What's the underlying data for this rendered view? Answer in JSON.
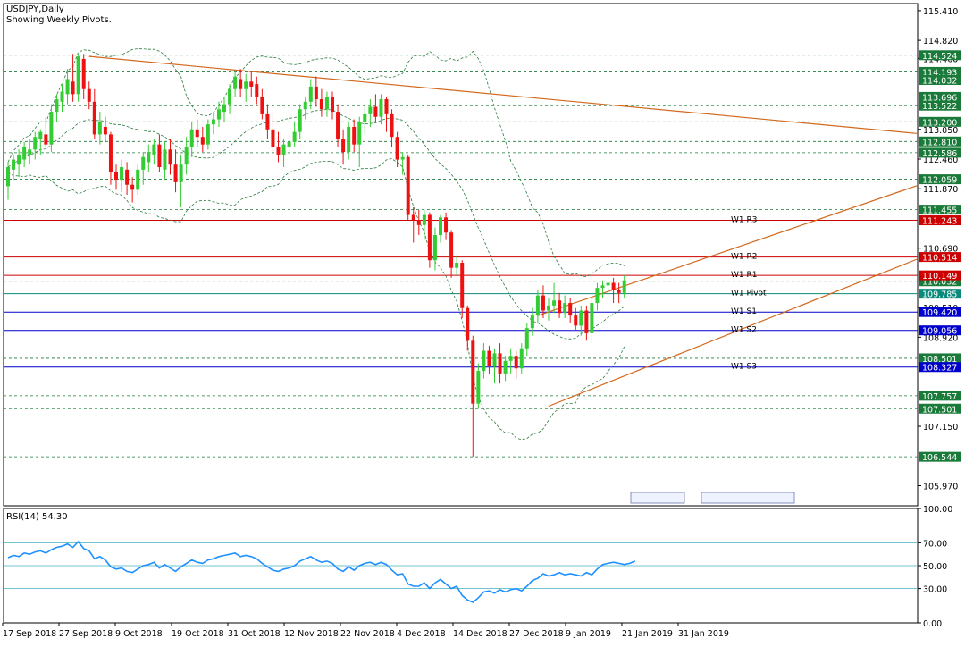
{
  "header": {
    "symbol": "USDJPY,Daily",
    "subtitle": "Showing Weekly Pivots."
  },
  "rsi_header": "RSI(14) 54.30",
  "chart_data": {
    "type": "candlestick",
    "price_axis": {
      "range": [
        105.57,
        115.55
      ],
      "ticks": [
        "115.410",
        "114.820",
        "114.460",
        "113.050",
        "112.460",
        "111.870",
        "110.690",
        "109.510",
        "108.920",
        "107.150",
        "105.970"
      ]
    },
    "rsi_axis": {
      "range": [
        0,
        100
      ],
      "ticks": [
        "100.00",
        "70.00",
        "50.00",
        "30.00",
        "0.00"
      ],
      "levels": [
        70,
        50,
        30
      ]
    },
    "x_dates": [
      "17 Sep 2018",
      "27 Sep 2018",
      "9 Oct 2018",
      "19 Oct 2018",
      "31 Oct 2018",
      "12 Nov 2018",
      "22 Nov 2018",
      "4 Dec 2018",
      "14 Dec 2018",
      "27 Dec 2018",
      "9 Jan 2019",
      "21 Jan 2019",
      "31 Jan 2019"
    ],
    "price_levels": [
      {
        "price": 114.524,
        "label": "114.524",
        "style": "dotted",
        "tag": "green"
      },
      {
        "price": 114.193,
        "label": "114.193",
        "style": "dotted",
        "tag": "green"
      },
      {
        "price": 114.032,
        "label": "114.032",
        "style": "dotted",
        "tag": "green"
      },
      {
        "price": 113.696,
        "label": "113.696",
        "style": "dotted",
        "tag": "green"
      },
      {
        "price": 113.522,
        "label": "113.522",
        "style": "dotted",
        "tag": "green"
      },
      {
        "price": 113.2,
        "label": "113.200",
        "style": "dotted",
        "tag": "green"
      },
      {
        "price": 112.81,
        "label": "112.810",
        "style": "dotted",
        "tag": "green"
      },
      {
        "price": 112.586,
        "label": "112.586",
        "style": "dotted",
        "tag": "green"
      },
      {
        "price": 112.059,
        "label": "112.059",
        "style": "dotted",
        "tag": "green"
      },
      {
        "price": 111.455,
        "label": "111.455",
        "style": "dotted",
        "tag": "green"
      },
      {
        "price": 110.032,
        "label": "110.032",
        "style": "dotted",
        "tag": "green"
      },
      {
        "price": 108.501,
        "label": "108.501",
        "style": "dotted",
        "tag": "green"
      },
      {
        "price": 107.757,
        "label": "107.757",
        "style": "dotted",
        "tag": "green"
      },
      {
        "price": 107.501,
        "label": "107.501",
        "style": "dotted",
        "tag": "green"
      },
      {
        "price": 106.544,
        "label": "106.544",
        "style": "dotted",
        "tag": "green"
      },
      {
        "price": 109.785,
        "label": "109.785",
        "style": "solid",
        "tag": "teal",
        "name": "W1 Pivot"
      },
      {
        "price": 111.243,
        "label": "111.243",
        "style": "solid",
        "tag": "red",
        "name": "W1 R3"
      },
      {
        "price": 110.514,
        "label": "110.514",
        "style": "solid",
        "tag": "red",
        "name": "W1 R2"
      },
      {
        "price": 110.149,
        "label": "110.149",
        "style": "solid",
        "tag": "red",
        "name": "W1 R1"
      },
      {
        "price": 109.42,
        "label": "109.420",
        "style": "solid",
        "tag": "blue",
        "name": "W1 S1"
      },
      {
        "price": 109.056,
        "label": "109.056",
        "style": "solid",
        "tag": "blue",
        "name": "W1 S2"
      },
      {
        "price": 108.327,
        "label": "108.327",
        "style": "solid",
        "tag": "blue",
        "name": "W1 S3"
      }
    ],
    "candles": [
      {
        "o": 111.92,
        "h": 112.4,
        "l": 111.65,
        "c": 112.3
      },
      {
        "o": 112.25,
        "h": 112.55,
        "l": 112.05,
        "c": 112.45
      },
      {
        "o": 112.35,
        "h": 112.65,
        "l": 112.1,
        "c": 112.55
      },
      {
        "o": 112.45,
        "h": 112.8,
        "l": 112.3,
        "c": 112.7
      },
      {
        "o": 112.55,
        "h": 112.85,
        "l": 112.35,
        "c": 112.65
      },
      {
        "o": 112.65,
        "h": 113.0,
        "l": 112.45,
        "c": 112.9
      },
      {
        "o": 112.85,
        "h": 113.05,
        "l": 112.55,
        "c": 113.0
      },
      {
        "o": 112.95,
        "h": 113.3,
        "l": 112.7,
        "c": 112.75
      },
      {
        "o": 112.75,
        "h": 113.55,
        "l": 112.6,
        "c": 113.4
      },
      {
        "o": 113.4,
        "h": 113.75,
        "l": 113.2,
        "c": 113.65
      },
      {
        "o": 113.6,
        "h": 113.95,
        "l": 113.4,
        "c": 113.8
      },
      {
        "o": 113.75,
        "h": 114.25,
        "l": 113.55,
        "c": 114.05
      },
      {
        "o": 114.0,
        "h": 114.55,
        "l": 113.6,
        "c": 113.75
      },
      {
        "o": 113.75,
        "h": 114.55,
        "l": 113.6,
        "c": 114.5
      },
      {
        "o": 114.45,
        "h": 114.55,
        "l": 113.65,
        "c": 113.85
      },
      {
        "o": 113.85,
        "h": 114.0,
        "l": 113.45,
        "c": 113.6
      },
      {
        "o": 113.6,
        "h": 113.85,
        "l": 112.85,
        "c": 112.95
      },
      {
        "o": 112.95,
        "h": 113.4,
        "l": 112.75,
        "c": 113.2
      },
      {
        "o": 113.1,
        "h": 113.3,
        "l": 112.8,
        "c": 112.95
      },
      {
        "o": 112.95,
        "h": 113.0,
        "l": 111.95,
        "c": 112.2
      },
      {
        "o": 112.2,
        "h": 112.35,
        "l": 111.85,
        "c": 112.05
      },
      {
        "o": 112.05,
        "h": 112.45,
        "l": 111.8,
        "c": 112.3
      },
      {
        "o": 112.25,
        "h": 112.4,
        "l": 111.75,
        "c": 111.95
      },
      {
        "o": 111.95,
        "h": 112.1,
        "l": 111.6,
        "c": 111.85
      },
      {
        "o": 111.85,
        "h": 112.35,
        "l": 111.75,
        "c": 112.25
      },
      {
        "o": 112.25,
        "h": 112.6,
        "l": 111.95,
        "c": 112.5
      },
      {
        "o": 112.4,
        "h": 112.75,
        "l": 112.2,
        "c": 112.6
      },
      {
        "o": 112.55,
        "h": 112.85,
        "l": 112.35,
        "c": 112.75
      },
      {
        "o": 112.75,
        "h": 112.95,
        "l": 112.2,
        "c": 112.3
      },
      {
        "o": 112.25,
        "h": 112.8,
        "l": 112.05,
        "c": 112.65
      },
      {
        "o": 112.65,
        "h": 112.85,
        "l": 112.15,
        "c": 112.35
      },
      {
        "o": 112.35,
        "h": 112.65,
        "l": 111.8,
        "c": 112.0
      },
      {
        "o": 112.0,
        "h": 112.55,
        "l": 111.5,
        "c": 112.35
      },
      {
        "o": 112.35,
        "h": 112.9,
        "l": 112.15,
        "c": 112.7
      },
      {
        "o": 112.7,
        "h": 113.2,
        "l": 112.5,
        "c": 113.05
      },
      {
        "o": 113.05,
        "h": 113.25,
        "l": 112.7,
        "c": 112.9
      },
      {
        "o": 112.9,
        "h": 113.1,
        "l": 112.6,
        "c": 112.75
      },
      {
        "o": 112.75,
        "h": 113.25,
        "l": 112.65,
        "c": 113.15
      },
      {
        "o": 113.15,
        "h": 113.4,
        "l": 112.95,
        "c": 113.25
      },
      {
        "o": 113.25,
        "h": 113.6,
        "l": 113.1,
        "c": 113.45
      },
      {
        "o": 113.4,
        "h": 113.7,
        "l": 113.2,
        "c": 113.55
      },
      {
        "o": 113.55,
        "h": 113.95,
        "l": 113.35,
        "c": 113.85
      },
      {
        "o": 113.85,
        "h": 114.2,
        "l": 113.7,
        "c": 114.1
      },
      {
        "o": 114.05,
        "h": 114.25,
        "l": 113.7,
        "c": 113.85
      },
      {
        "o": 113.85,
        "h": 114.15,
        "l": 113.6,
        "c": 114.0
      },
      {
        "o": 114.0,
        "h": 114.2,
        "l": 113.7,
        "c": 113.9
      },
      {
        "o": 113.95,
        "h": 114.1,
        "l": 113.55,
        "c": 113.7
      },
      {
        "o": 113.7,
        "h": 113.85,
        "l": 113.25,
        "c": 113.35
      },
      {
        "o": 113.35,
        "h": 113.55,
        "l": 112.85,
        "c": 113.05
      },
      {
        "o": 113.05,
        "h": 113.4,
        "l": 112.5,
        "c": 112.7
      },
      {
        "o": 112.7,
        "h": 113.0,
        "l": 112.4,
        "c": 112.55
      },
      {
        "o": 112.55,
        "h": 112.85,
        "l": 112.3,
        "c": 112.75
      },
      {
        "o": 112.7,
        "h": 112.95,
        "l": 112.55,
        "c": 112.8
      },
      {
        "o": 112.8,
        "h": 113.2,
        "l": 112.7,
        "c": 113.0
      },
      {
        "o": 113.0,
        "h": 113.55,
        "l": 112.85,
        "c": 113.45
      },
      {
        "o": 113.45,
        "h": 113.7,
        "l": 113.25,
        "c": 113.6
      },
      {
        "o": 113.6,
        "h": 114.05,
        "l": 113.45,
        "c": 113.9
      },
      {
        "o": 113.9,
        "h": 114.1,
        "l": 113.5,
        "c": 113.65
      },
      {
        "o": 113.65,
        "h": 113.85,
        "l": 113.3,
        "c": 113.45
      },
      {
        "o": 113.45,
        "h": 113.8,
        "l": 113.3,
        "c": 113.7
      },
      {
        "o": 113.7,
        "h": 113.8,
        "l": 113.25,
        "c": 113.4
      },
      {
        "o": 113.4,
        "h": 113.55,
        "l": 112.7,
        "c": 112.85
      },
      {
        "o": 112.85,
        "h": 113.05,
        "l": 112.35,
        "c": 112.6
      },
      {
        "o": 112.6,
        "h": 113.2,
        "l": 112.45,
        "c": 113.1
      },
      {
        "o": 113.1,
        "h": 113.25,
        "l": 112.6,
        "c": 112.75
      },
      {
        "o": 112.75,
        "h": 113.3,
        "l": 112.3,
        "c": 113.2
      },
      {
        "o": 113.2,
        "h": 113.55,
        "l": 112.95,
        "c": 113.35
      },
      {
        "o": 113.35,
        "h": 113.65,
        "l": 113.1,
        "c": 113.5
      },
      {
        "o": 113.5,
        "h": 113.75,
        "l": 113.2,
        "c": 113.3
      },
      {
        "o": 113.3,
        "h": 113.75,
        "l": 113.15,
        "c": 113.65
      },
      {
        "o": 113.65,
        "h": 113.7,
        "l": 113.0,
        "c": 113.35
      },
      {
        "o": 113.35,
        "h": 113.45,
        "l": 112.7,
        "c": 112.9
      },
      {
        "o": 112.9,
        "h": 113.0,
        "l": 112.3,
        "c": 112.45
      },
      {
        "o": 112.45,
        "h": 112.6,
        "l": 112.15,
        "c": 112.5
      },
      {
        "o": 112.5,
        "h": 112.55,
        "l": 111.25,
        "c": 111.35
      },
      {
        "o": 111.35,
        "h": 111.5,
        "l": 110.8,
        "c": 111.25
      },
      {
        "o": 111.25,
        "h": 111.45,
        "l": 110.95,
        "c": 111.15
      },
      {
        "o": 111.15,
        "h": 111.45,
        "l": 110.85,
        "c": 111.35
      },
      {
        "o": 111.35,
        "h": 111.4,
        "l": 110.3,
        "c": 110.45
      },
      {
        "o": 110.45,
        "h": 111.1,
        "l": 110.25,
        "c": 110.95
      },
      {
        "o": 110.95,
        "h": 111.35,
        "l": 110.8,
        "c": 111.3
      },
      {
        "o": 111.3,
        "h": 111.4,
        "l": 110.85,
        "c": 111.0
      },
      {
        "o": 111.0,
        "h": 111.05,
        "l": 110.1,
        "c": 110.3
      },
      {
        "o": 110.3,
        "h": 110.55,
        "l": 110.15,
        "c": 110.4
      },
      {
        "o": 110.4,
        "h": 110.45,
        "l": 109.3,
        "c": 109.5
      },
      {
        "o": 109.5,
        "h": 109.55,
        "l": 108.65,
        "c": 108.85
      },
      {
        "o": 108.85,
        "h": 108.95,
        "l": 106.55,
        "c": 107.6
      },
      {
        "o": 107.6,
        "h": 108.4,
        "l": 107.5,
        "c": 108.25
      },
      {
        "o": 108.25,
        "h": 108.8,
        "l": 108.1,
        "c": 108.65
      },
      {
        "o": 108.65,
        "h": 108.75,
        "l": 108.2,
        "c": 108.35
      },
      {
        "o": 108.35,
        "h": 108.7,
        "l": 108.0,
        "c": 108.6
      },
      {
        "o": 108.6,
        "h": 108.8,
        "l": 108.0,
        "c": 108.2
      },
      {
        "o": 108.2,
        "h": 108.55,
        "l": 108.05,
        "c": 108.45
      },
      {
        "o": 108.45,
        "h": 108.7,
        "l": 108.2,
        "c": 108.55
      },
      {
        "o": 108.55,
        "h": 108.65,
        "l": 108.1,
        "c": 108.3
      },
      {
        "o": 108.3,
        "h": 108.8,
        "l": 108.2,
        "c": 108.7
      },
      {
        "o": 108.7,
        "h": 109.2,
        "l": 108.55,
        "c": 109.1
      },
      {
        "o": 109.1,
        "h": 109.5,
        "l": 108.95,
        "c": 109.35
      },
      {
        "o": 109.35,
        "h": 109.85,
        "l": 109.2,
        "c": 109.75
      },
      {
        "o": 109.75,
        "h": 109.95,
        "l": 109.3,
        "c": 109.45
      },
      {
        "o": 109.45,
        "h": 109.7,
        "l": 109.25,
        "c": 109.55
      },
      {
        "o": 109.55,
        "h": 110.0,
        "l": 109.4,
        "c": 109.65
      },
      {
        "o": 109.65,
        "h": 109.8,
        "l": 109.3,
        "c": 109.4
      },
      {
        "o": 109.4,
        "h": 109.75,
        "l": 109.3,
        "c": 109.6
      },
      {
        "o": 109.6,
        "h": 109.7,
        "l": 109.2,
        "c": 109.35
      },
      {
        "o": 109.35,
        "h": 109.5,
        "l": 109.05,
        "c": 109.15
      },
      {
        "o": 109.15,
        "h": 109.55,
        "l": 108.95,
        "c": 109.45
      },
      {
        "o": 109.45,
        "h": 109.55,
        "l": 108.85,
        "c": 109.0
      },
      {
        "o": 109.0,
        "h": 109.7,
        "l": 108.8,
        "c": 109.6
      },
      {
        "o": 109.6,
        "h": 110.0,
        "l": 109.45,
        "c": 109.9
      },
      {
        "o": 109.9,
        "h": 110.05,
        "l": 109.7,
        "c": 109.95
      },
      {
        "o": 109.95,
        "h": 110.15,
        "l": 109.75,
        "c": 110.0
      },
      {
        "o": 110.0,
        "h": 110.1,
        "l": 109.6,
        "c": 109.85
      },
      {
        "o": 109.85,
        "h": 110.0,
        "l": 109.6,
        "c": 109.8
      },
      {
        "o": 109.8,
        "h": 110.15,
        "l": 109.7,
        "c": 110.05
      }
    ],
    "rsi": [
      57,
      59,
      58,
      61,
      60,
      62,
      63,
      61,
      64,
      66,
      67,
      69,
      66,
      71,
      65,
      63,
      56,
      58,
      55,
      49,
      47,
      48,
      45,
      44,
      47,
      50,
      51,
      53,
      48,
      51,
      48,
      45,
      49,
      52,
      55,
      53,
      52,
      55,
      56,
      58,
      59,
      60,
      61,
      58,
      59,
      58,
      56,
      52,
      49,
      46,
      45,
      47,
      48,
      50,
      54,
      56,
      58,
      55,
      53,
      54,
      52,
      47,
      45,
      49,
      46,
      50,
      52,
      53,
      51,
      53,
      51,
      46,
      42,
      43,
      34,
      32,
      32,
      35,
      30,
      35,
      38,
      34,
      30,
      32,
      24,
      20,
      18,
      22,
      27,
      28,
      26,
      29,
      27,
      29,
      30,
      28,
      32,
      37,
      39,
      43,
      41,
      42,
      44,
      42,
      43,
      42,
      41,
      44,
      42,
      47,
      51,
      52,
      53,
      52,
      51,
      52,
      54
    ]
  }
}
